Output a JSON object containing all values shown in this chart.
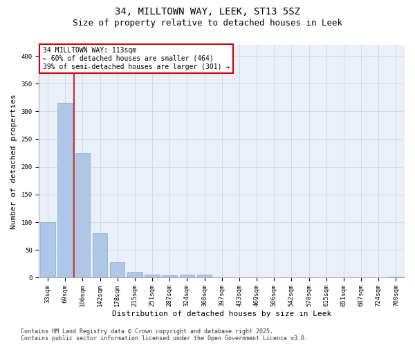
{
  "title_line1": "34, MILLTOWN WAY, LEEK, ST13 5SZ",
  "title_line2": "Size of property relative to detached houses in Leek",
  "xlabel": "Distribution of detached houses by size in Leek",
  "ylabel": "Number of detached properties",
  "categories": [
    "33sqm",
    "69sqm",
    "106sqm",
    "142sqm",
    "178sqm",
    "215sqm",
    "251sqm",
    "287sqm",
    "324sqm",
    "360sqm",
    "397sqm",
    "433sqm",
    "469sqm",
    "506sqm",
    "542sqm",
    "578sqm",
    "615sqm",
    "651sqm",
    "687sqm",
    "724sqm",
    "760sqm"
  ],
  "values": [
    100,
    315,
    225,
    80,
    28,
    10,
    5,
    4,
    5,
    6,
    0,
    1,
    0,
    0,
    0,
    0,
    0,
    0,
    0,
    0,
    2
  ],
  "bar_color": "#aec6e8",
  "bar_edge_color": "#7bafd4",
  "vline_x": 1.5,
  "vline_color": "#cc0000",
  "annotation_text": "34 MILLTOWN WAY: 113sqm\n← 60% of detached houses are smaller (464)\n39% of semi-detached houses are larger (301) →",
  "annotation_box_color": "#ffffff",
  "annotation_box_edge_color": "#cc0000",
  "ylim": [
    0,
    420
  ],
  "yticks": [
    0,
    50,
    100,
    150,
    200,
    250,
    300,
    350,
    400
  ],
  "grid_color": "#cdd5e5",
  "background_color": "#eaeff8",
  "footer_line1": "Contains HM Land Registry data © Crown copyright and database right 2025.",
  "footer_line2": "Contains public sector information licensed under the Open Government Licence v3.0.",
  "title_fontsize": 10,
  "axis_label_fontsize": 8,
  "tick_fontsize": 6.5,
  "annotation_fontsize": 7,
  "footer_fontsize": 6
}
